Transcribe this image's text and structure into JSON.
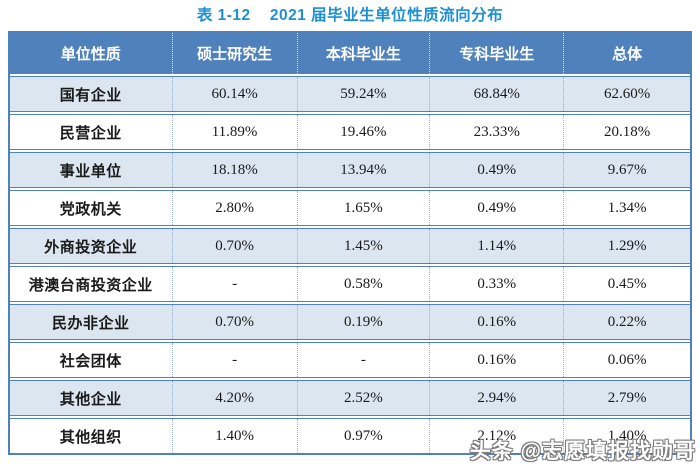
{
  "title": "表 1-12    2021 届毕业生单位性质流向分布",
  "table": {
    "headers": [
      "单位性质",
      "硕士研究生",
      "本科毕业生",
      "专科毕业生",
      "总体"
    ],
    "rows": [
      {
        "label": "国有企业",
        "values": [
          "60.14%",
          "59.24%",
          "68.84%",
          "62.60%"
        ]
      },
      {
        "label": "民营企业",
        "values": [
          "11.89%",
          "19.46%",
          "23.33%",
          "20.18%"
        ]
      },
      {
        "label": "事业单位",
        "values": [
          "18.18%",
          "13.94%",
          "0.49%",
          "9.67%"
        ]
      },
      {
        "label": "党政机关",
        "values": [
          "2.80%",
          "1.65%",
          "0.49%",
          "1.34%"
        ]
      },
      {
        "label": "外商投资企业",
        "values": [
          "0.70%",
          "1.45%",
          "1.14%",
          "1.29%"
        ]
      },
      {
        "label": "港澳台商投资企业",
        "values": [
          "-",
          "0.58%",
          "0.33%",
          "0.45%"
        ]
      },
      {
        "label": "民办非企业",
        "values": [
          "0.70%",
          "0.19%",
          "0.16%",
          "0.22%"
        ]
      },
      {
        "label": "社会团体",
        "values": [
          "-",
          "-",
          "0.16%",
          "0.06%"
        ]
      },
      {
        "label": "其他企业",
        "values": [
          "4.20%",
          "2.52%",
          "2.94%",
          "2.79%"
        ]
      },
      {
        "label": "其他组织",
        "values": [
          "1.40%",
          "0.97%",
          "2.12%",
          "1.40%"
        ]
      }
    ]
  },
  "watermark": "头条 @志愿填报找勋哥",
  "colors": {
    "title": "#1e8fd2",
    "header_bg": "#4f81bd",
    "header_text": "#ffffff",
    "row_bg": "#ffffff",
    "row_alt_bg": "#dce6f1",
    "border": "#4f81bd",
    "divider": "#9db3cc",
    "body_text": "#1a1a1a"
  }
}
